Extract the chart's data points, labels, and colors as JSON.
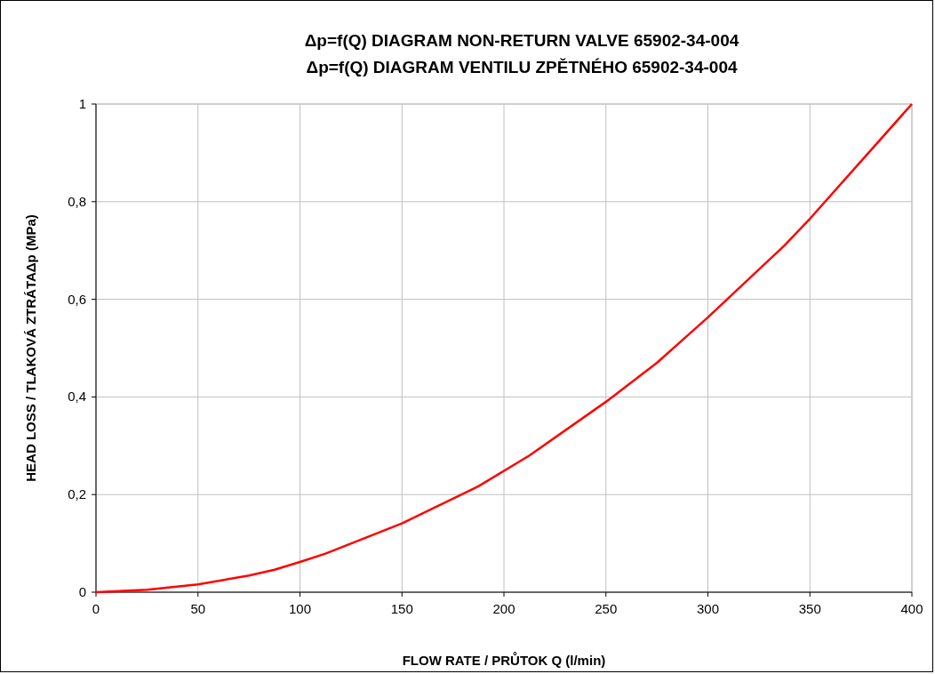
{
  "chart_data": {
    "type": "line",
    "title": "Δp=f(Q) DIAGRAM NON-RETURN VALVE 65902-34-004\nΔp=f(Q) DIAGRAM VENTILU ZPĚTNÉHO 65902-34-004",
    "xlabel": "FLOW RATE / PRŮTOK Q (l/min)",
    "ylabel": "HEAD LOSS / TLAKOVÁ ZTRÁTAΔp (MPa)",
    "x": [
      0,
      25,
      50,
      75,
      87.5,
      100,
      112.5,
      150,
      187.5,
      212.5,
      250,
      275,
      300,
      337.5,
      350,
      400
    ],
    "series": [
      {
        "color": "#ff0000",
        "values": [
          0,
          0.005,
          0.016,
          0.034,
          0.046,
          0.062,
          0.079,
          0.141,
          0.217,
          0.28,
          0.39,
          0.47,
          0.563,
          0.71,
          0.765,
          1
        ]
      }
    ],
    "xlim": [
      0,
      400
    ],
    "xticks": [
      0,
      50,
      100,
      150,
      200,
      250,
      300,
      350,
      400
    ],
    "ylim": [
      0,
      1
    ],
    "yticks": [
      0,
      {
        "value": 0.2,
        "label": "0,2"
      },
      {
        "value": 0.4,
        "label": "0,4"
      },
      {
        "value": 0.6,
        "label": "0,6"
      },
      {
        "value": 0.8,
        "label": "0,8"
      },
      1
    ],
    "grid": true,
    "marker": "none",
    "line_style": "solid"
  }
}
